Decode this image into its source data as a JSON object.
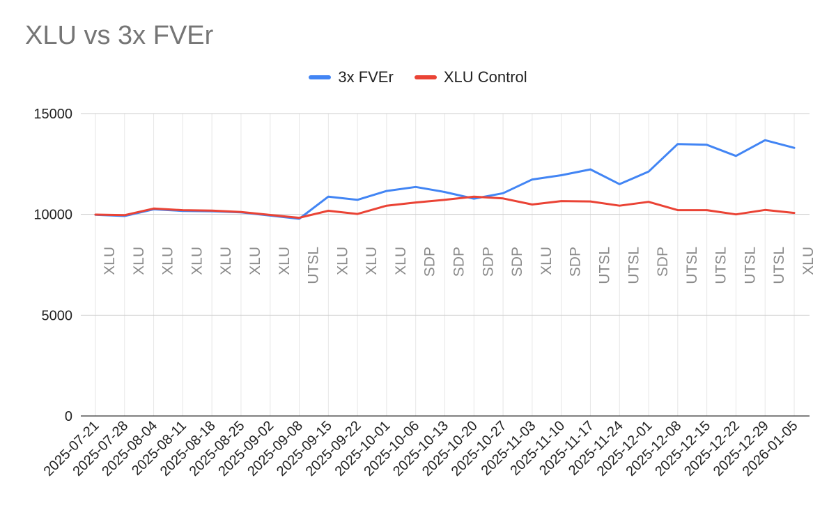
{
  "chart_data": {
    "type": "line",
    "title": "XLU vs 3x FVEr",
    "xlabel": "",
    "ylabel": "",
    "ylim": [
      0,
      15000
    ],
    "yticks": [
      0,
      5000,
      10000,
      15000
    ],
    "legend_position": "top",
    "grid": true,
    "categories": [
      "2025-07-21",
      "2025-07-28",
      "2025-08-04",
      "2025-08-11",
      "2025-08-18",
      "2025-08-25",
      "2025-09-02",
      "2025-09-08",
      "2025-09-15",
      "2025-09-22",
      "2025-10-01",
      "2025-10-06",
      "2025-10-13",
      "2025-10-20",
      "2025-10-27",
      "2025-11-03",
      "2025-11-10",
      "2025-11-17",
      "2025-11-24",
      "2025-12-01",
      "2025-12-08",
      "2025-12-15",
      "2025-12-22",
      "2025-12-29",
      "2026-01-05"
    ],
    "series": [
      {
        "name": "3x FVEr",
        "color": "#4285f4",
        "values": [
          9980,
          9920,
          10250,
          10170,
          10150,
          10100,
          9940,
          9780,
          10880,
          10720,
          11160,
          11360,
          11110,
          10780,
          11050,
          11730,
          11940,
          12230,
          11500,
          12120,
          13490,
          13450,
          12900,
          13680,
          13300
        ]
      },
      {
        "name": "XLU Control",
        "color": "#ea4335",
        "values": [
          9990,
          9960,
          10290,
          10210,
          10190,
          10120,
          9970,
          9830,
          10180,
          10020,
          10430,
          10590,
          10720,
          10880,
          10790,
          10490,
          10660,
          10640,
          10430,
          10620,
          10210,
          10210,
          10000,
          10220,
          10070
        ]
      }
    ],
    "annotations": [
      "XLU",
      "XLU",
      "XLU",
      "XLU",
      "XLU",
      "XLU",
      "XLU",
      "UTSL",
      "XLU",
      "XLU",
      "XLU",
      "SDP",
      "SDP",
      "SDP",
      "SDP",
      "XLU",
      "SDP",
      "UTSL",
      "UTSL",
      "SDP",
      "UTSL",
      "UTSL",
      "UTSL",
      "UTSL",
      "XLU"
    ]
  }
}
